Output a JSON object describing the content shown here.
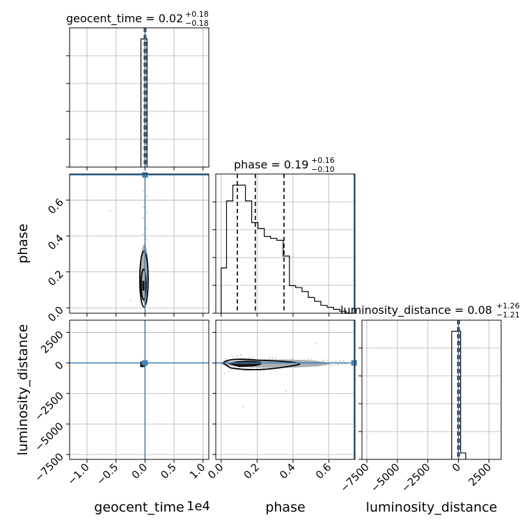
{
  "chart_data": {
    "type": "corner",
    "parameters": [
      "geocent_time",
      "phase",
      "luminosity_distance"
    ],
    "titles": [
      {
        "param": "geocent_time",
        "name": "geocent_time",
        "median": "0.02",
        "plus": "+0.18",
        "minus": "−0.18"
      },
      {
        "param": "phase",
        "name": "phase",
        "median": "0.19",
        "plus": "+0.16",
        "minus": "−0.10"
      },
      {
        "param": "luminosity_distance",
        "name": "luminosity_distance",
        "median": "0.08",
        "plus": "+1.26",
        "minus": "−1.21"
      }
    ],
    "axis_labels": {
      "geocent_time": "geocent_time",
      "phase": "phase",
      "luminosity_distance": "luminosity_distance",
      "geocent_time_offset": "1e4"
    },
    "ranges": {
      "geocent_time": [
        -1.3,
        1.1
      ],
      "phase": [
        -0.03,
        0.745
      ],
      "luminosity_distance": [
        -7900,
        3500
      ]
    },
    "ticks": {
      "geocent_time": {
        "values": [
          -1.0,
          -0.5,
          0.0,
          0.5,
          1.0
        ],
        "labels": [
          "−1.0",
          "−0.5",
          "0.0",
          "0.5",
          "1.0"
        ]
      },
      "phase": {
        "values": [
          0.0,
          0.2,
          0.4,
          0.6
        ],
        "labels": [
          "0.0",
          "0.2",
          "0.4",
          "0.6"
        ]
      },
      "luminosity_distance": {
        "values": [
          -7500,
          -5000,
          -2500,
          0,
          2500
        ],
        "labels": [
          "−7500",
          "−5000",
          "−2500",
          "0",
          "2500"
        ]
      }
    },
    "truths": {
      "geocent_time": 0.0,
      "phase": 0.74,
      "luminosity_distance": 0
    },
    "quantiles": {
      "geocent_time": [
        -0.16,
        0.02,
        0.2
      ],
      "phase": [
        0.09,
        0.19,
        0.35
      ],
      "luminosity_distance": [
        -1.13,
        0.08,
        1.34
      ]
    },
    "histograms": {
      "geocent_time": {
        "edges": [
          -0.07,
          0.0,
          0.035
        ],
        "counts": [
          1.0,
          1.0
        ]
      },
      "phase": {
        "edges": [
          0.0,
          0.03,
          0.065,
          0.1,
          0.135,
          0.17,
          0.205,
          0.24,
          0.275,
          0.31,
          0.345,
          0.38,
          0.415,
          0.45,
          0.485,
          0.52,
          0.555,
          0.59,
          0.625,
          0.66,
          0.695,
          0.73
        ],
        "counts": [
          0.23,
          0.57,
          0.65,
          0.65,
          0.57,
          0.46,
          0.43,
          0.39,
          0.38,
          0.37,
          0.29,
          0.14,
          0.13,
          0.11,
          0.08,
          0.06,
          0.04,
          0.03,
          0.02,
          0.01,
          0.0
        ]
      },
      "luminosity_distance": {
        "edges": [
          -550,
          0,
          180,
          600
        ],
        "counts": [
          1.0,
          1.0,
          0.05
        ]
      }
    },
    "truth_color": "#4682b4",
    "grid": true
  }
}
